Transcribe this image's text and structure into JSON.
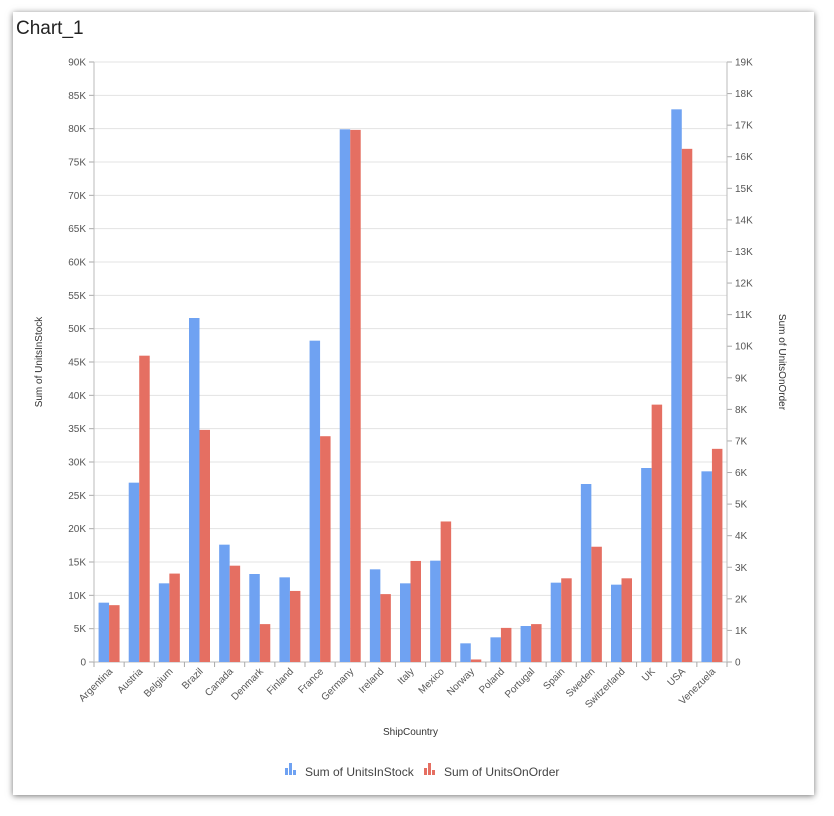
{
  "title": "Chart_1",
  "chart_data": {
    "type": "bar",
    "categories": [
      "Argentina",
      "Austria",
      "Belgium",
      "Brazil",
      "Canada",
      "Denmark",
      "Finland",
      "France",
      "Germany",
      "Ireland",
      "Italy",
      "Mexico",
      "Norway",
      "Poland",
      "Portugal",
      "Spain",
      "Sweden",
      "Switzerland",
      "UK",
      "USA",
      "Venezuela"
    ],
    "series": [
      {
        "name": "Sum of UnitsInStock",
        "axis": "left",
        "color": "#6fa2f2",
        "values": [
          8900,
          26900,
          11800,
          51600,
          17600,
          13200,
          12700,
          48200,
          79900,
          13900,
          11800,
          15200,
          2800,
          3700,
          5400,
          11900,
          26700,
          11600,
          29100,
          82900,
          28600
        ]
      },
      {
        "name": "Sum of UnitsOnOrder",
        "axis": "right",
        "color": "#e56f62",
        "values": [
          1800,
          9700,
          2800,
          7350,
          3050,
          1200,
          2250,
          7150,
          16850,
          2150,
          3200,
          4450,
          80,
          1080,
          1200,
          2650,
          3650,
          2650,
          8150,
          16250,
          6750
        ]
      }
    ],
    "xlabel": "ShipCountry",
    "ylabel": "Sum of UnitsInStock",
    "y2label": "Sum of UnitsOnOrder",
    "ylim": [
      0,
      90000
    ],
    "y2lim": [
      0,
      19000
    ],
    "yticks": [
      "0",
      "5K",
      "10K",
      "15K",
      "20K",
      "25K",
      "30K",
      "35K",
      "40K",
      "45K",
      "50K",
      "55K",
      "60K",
      "65K",
      "70K",
      "75K",
      "80K",
      "85K",
      "90K"
    ],
    "y2ticks": [
      "0",
      "1K",
      "2K",
      "3K",
      "4K",
      "5K",
      "6K",
      "7K",
      "8K",
      "9K",
      "10K",
      "11K",
      "12K",
      "13K",
      "14K",
      "15K",
      "16K",
      "17K",
      "18K",
      "19K"
    ],
    "grid": true,
    "legend_position": "bottom"
  }
}
